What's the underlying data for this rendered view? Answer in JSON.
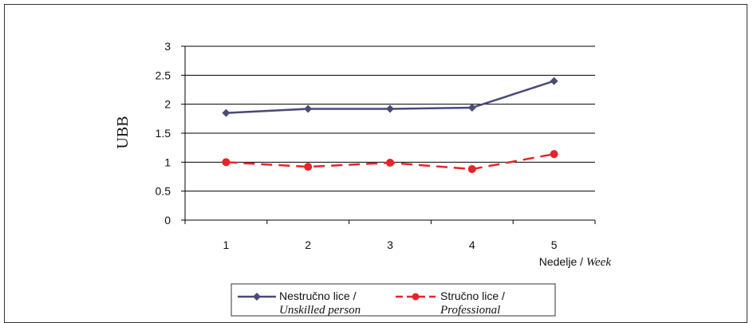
{
  "chart_data": {
    "type": "line",
    "categories": [
      "1",
      "2",
      "3",
      "4",
      "5"
    ],
    "series": [
      {
        "name": "Nestručno lice /",
        "name_italic": "Unskilled person",
        "values": [
          1.85,
          1.92,
          1.92,
          1.94,
          2.4
        ],
        "color": "#4a4a7a",
        "marker": "diamond",
        "dash": "solid"
      },
      {
        "name": "Stručno lice /",
        "name_italic": "Professional",
        "values": [
          1.0,
          0.92,
          0.99,
          0.88,
          1.14
        ],
        "color": "#e8232a",
        "marker": "circle",
        "dash": "dashed"
      }
    ],
    "yticks": [
      "0",
      "0.5",
      "1",
      "1.5",
      "2",
      "2.5",
      "3"
    ],
    "ylim": [
      0,
      3
    ],
    "ylabel": "UBB",
    "xlabel": "Nedelje / ",
    "xlabel_italic": "Week",
    "grid": true,
    "legend_position": "bottom"
  }
}
